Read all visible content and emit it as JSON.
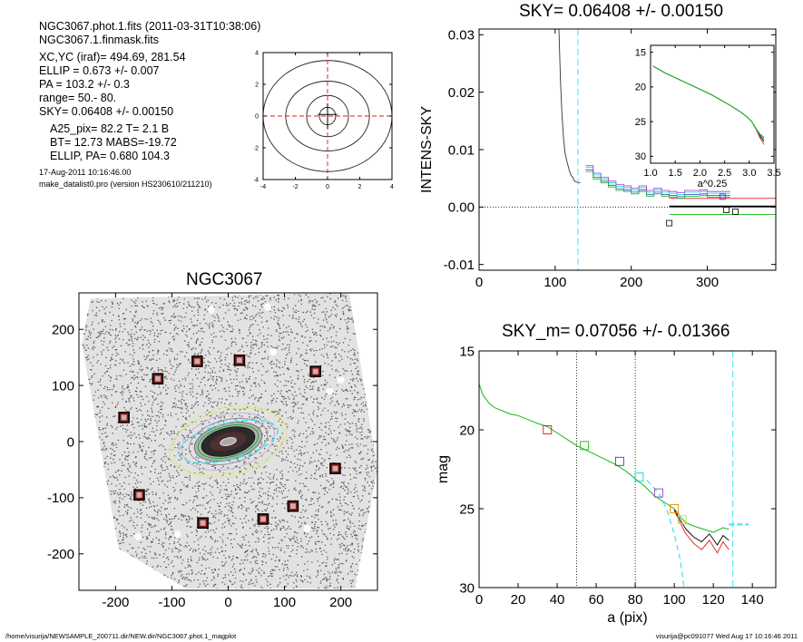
{
  "header": {
    "line1": "NGC3067.phot.1.fits  (2011-03-31T10:38:06)",
    "line2": "NGC3067.1.finmask.fits",
    "xcyc": "XC,YC (iraf)=   494.69, 281.54",
    "ellip": "ELLIP = 0.673 +/- 0.007",
    "pa": "PA    = 103.2 +/-   0.3",
    "range": "range=   50.-   80.",
    "sky": "SKY= 0.06408 +/- 0.00150",
    "a25": "A25_pix= 82.2   T= 2.1  B",
    "bt": "BT=  12.73   MABS=-19.72",
    "ellip_pa": "ELLIP, PA= 0.680   104.3",
    "date": "17-Aug-2011 10:16:46.00",
    "program": "make_datalist0.pro (version HS230610/211210)"
  },
  "footer": {
    "left": "/home/visurija/NEWSAMPLE_200711.dir/NEW.dir/NGC3067.phot.1_magplot",
    "right": "visurija@pc091077  Wed Aug 17 10:16:46 2011"
  },
  "colors": {
    "black": "#000000",
    "blue": "#2b3fd6",
    "cyan": "#00d0e0",
    "green": "#14b814",
    "red": "#e01818",
    "orange": "#f08a00",
    "purple": "#9a40c8",
    "yellow": "#c8e040",
    "gray": "#808080",
    "cyandash": "#40e0f0"
  },
  "chart_data": [
    {
      "id": "contour",
      "type": "contour",
      "title": "",
      "xlim": [
        -4,
        4
      ],
      "ylim": [
        -4,
        4
      ],
      "xticks": [
        -4,
        -2,
        0,
        2,
        4
      ],
      "yticks": [
        -4,
        -2,
        0,
        2,
        4
      ],
      "contours": [
        {
          "rx": 0.5,
          "ry": 0.55
        },
        {
          "rx": 1.3,
          "ry": 1.3
        },
        {
          "rx": 2.6,
          "ry": 2.2
        },
        {
          "rx": 4.0,
          "ry": 3.5
        }
      ],
      "crosshair_center": [
        0,
        0
      ]
    },
    {
      "id": "sky",
      "type": "line",
      "title": "SKY= 0.06408 +/- 0.00150",
      "ylabel": "INTENS-SKY",
      "xlabel": "",
      "xlim": [
        0,
        390
      ],
      "ylim": [
        -0.011,
        0.031
      ],
      "xticks": [
        0,
        100,
        200,
        300
      ],
      "yticks": [
        -0.01,
        0.0,
        0.01,
        0.02,
        0.03
      ],
      "ytick_labels": [
        "-0.01",
        "0.00",
        "0.01",
        "0.02",
        "0.03"
      ],
      "profile": {
        "x": [
          105,
          107,
          109,
          111,
          113,
          115,
          117,
          119,
          121,
          123,
          125,
          127,
          129,
          131,
          133
        ],
        "y": [
          0.031,
          0.022,
          0.016,
          0.012,
          0.0095,
          0.0082,
          0.0072,
          0.0062,
          0.0055,
          0.0052,
          0.0046,
          0.0044,
          0.0043,
          0.0042,
          0.0043
        ]
      },
      "steps": {
        "x": [
          140,
          150,
          160,
          170,
          180,
          190,
          200,
          210,
          220,
          230,
          240,
          250,
          260,
          270,
          280,
          290,
          300,
          310,
          320
        ],
        "y": [
          0.0065,
          0.0052,
          0.0045,
          0.0038,
          0.0032,
          0.003,
          0.0026,
          0.003,
          0.0022,
          0.0026,
          0.0022,
          0.002,
          0.0018,
          0.0022,
          0.0022,
          0.0023,
          0.002,
          0.002,
          0.002
        ]
      },
      "squares": [
        {
          "x": 250,
          "y": -0.0028,
          "c": "black"
        },
        {
          "x": 320,
          "y": 0.0018,
          "c": "blue"
        },
        {
          "x": 325,
          "y": -0.0005,
          "c": "black"
        },
        {
          "x": 337,
          "y": -0.0008,
          "c": "black"
        }
      ],
      "hlines": [
        {
          "x0": 250,
          "x1": 390,
          "y": 0.0001,
          "c": "black",
          "w": 1.8
        },
        {
          "x0": 250,
          "x1": 390,
          "y": 0.0015,
          "c": "red",
          "w": 0.9
        },
        {
          "x0": 250,
          "x1": 390,
          "y": -0.0013,
          "c": "green",
          "w": 0.9
        },
        {
          "x0": 0,
          "x1": 390,
          "y": 0.0,
          "c": "black",
          "w": 0.8,
          "dash": "1,2"
        }
      ],
      "vline_cyan": 130
    },
    {
      "id": "inset",
      "type": "line",
      "title": "",
      "xlabel": "a^0.25",
      "xlim": [
        1.0,
        3.5
      ],
      "ylim": [
        31,
        14
      ],
      "xticks": [
        1.0,
        1.5,
        2.0,
        2.5,
        3.0,
        3.5
      ],
      "yticks": [
        15,
        20,
        25,
        30
      ],
      "xtick_labels": [
        "1.0",
        "1.5",
        "2.0",
        "2.5",
        "3.0",
        "3.5"
      ],
      "x": [
        1.05,
        1.3,
        1.6,
        1.9,
        2.2,
        2.4,
        2.6,
        2.8,
        2.95,
        3.05,
        3.15,
        3.22,
        3.3
      ],
      "y": [
        17.0,
        18.0,
        19.0,
        20.0,
        21.0,
        21.8,
        22.6,
        23.5,
        24.3,
        25.0,
        26.2,
        27.0,
        27.6
      ]
    },
    {
      "id": "image",
      "type": "image",
      "title": "NGC3067",
      "xlim": [
        -265,
        265
      ],
      "ylim": [
        -265,
        265
      ],
      "xticks": [
        -200,
        -100,
        0,
        100,
        200
      ],
      "yticks": [
        -200,
        -100,
        0,
        100,
        200
      ],
      "markers": [
        [
          -55,
          143
        ],
        [
          20,
          145
        ],
        [
          155,
          125
        ],
        [
          -125,
          112
        ],
        [
          -185,
          43
        ],
        [
          190,
          -48
        ],
        [
          -158,
          -95
        ],
        [
          115,
          -115
        ],
        [
          62,
          -138
        ],
        [
          -45,
          -145
        ]
      ]
    },
    {
      "id": "mag",
      "type": "line",
      "title": "SKY_m=  0.07056 +/- 0.01366",
      "xlabel": "a (pix)",
      "ylabel": "mag",
      "xlim": [
        0,
        152
      ],
      "ylim": [
        30,
        15
      ],
      "xticks": [
        0,
        20,
        40,
        60,
        80,
        100,
        120,
        140
      ],
      "yticks": [
        15,
        20,
        25,
        30
      ],
      "x": [
        0,
        2,
        5,
        8,
        12,
        16,
        20,
        25,
        30,
        35,
        40,
        45,
        50,
        55,
        60,
        65,
        70,
        75,
        80,
        85,
        90,
        95,
        100,
        103,
        106,
        110,
        115,
        120,
        125,
        128
      ],
      "green": [
        17.1,
        17.8,
        18.3,
        18.6,
        18.8,
        19.0,
        19.1,
        19.35,
        19.6,
        19.8,
        20.2,
        20.6,
        21.0,
        21.3,
        21.6,
        21.9,
        22.2,
        22.6,
        23.1,
        23.6,
        24.2,
        24.6,
        25.0,
        25.5,
        25.9,
        26.1,
        26.3,
        26.5,
        26.2,
        26.3
      ],
      "red_tail": {
        "x": [
          100,
          103,
          106,
          110,
          114,
          118,
          122,
          125,
          128
        ],
        "y": [
          25.1,
          25.9,
          26.6,
          27.2,
          27.6,
          27.0,
          27.8,
          27.1,
          27.6
        ]
      },
      "black_tail": {
        "x": [
          100,
          103,
          106,
          110,
          114,
          118,
          122,
          125,
          128
        ],
        "y": [
          25.05,
          25.7,
          26.3,
          26.8,
          27.1,
          26.6,
          27.3,
          26.7,
          27.0
        ]
      },
      "cyan_dash": {
        "x": [
          86,
          92,
          96,
          100,
          103,
          105
        ],
        "y": [
          23.2,
          24.0,
          25.0,
          26.6,
          28.2,
          30.0
        ]
      },
      "sky_dash": {
        "x0": 128,
        "x1": 138,
        "y": 26.0
      },
      "squares": [
        {
          "x": 35,
          "y": 20.0,
          "c": "red"
        },
        {
          "x": 54,
          "y": 21.0,
          "c": "green"
        },
        {
          "x": 72,
          "y": 22.0,
          "c": "blue"
        },
        {
          "x": 82,
          "y": 23.0,
          "c": "cyan"
        },
        {
          "x": 92,
          "y": 24.0,
          "c": "purple"
        },
        {
          "x": 100,
          "y": 25.0,
          "c": "orange"
        },
        {
          "x": 104,
          "y": 25.7,
          "c": "yellow"
        }
      ],
      "vlines_dotted": [
        50,
        80
      ],
      "vline_cyan": 130
    }
  ]
}
